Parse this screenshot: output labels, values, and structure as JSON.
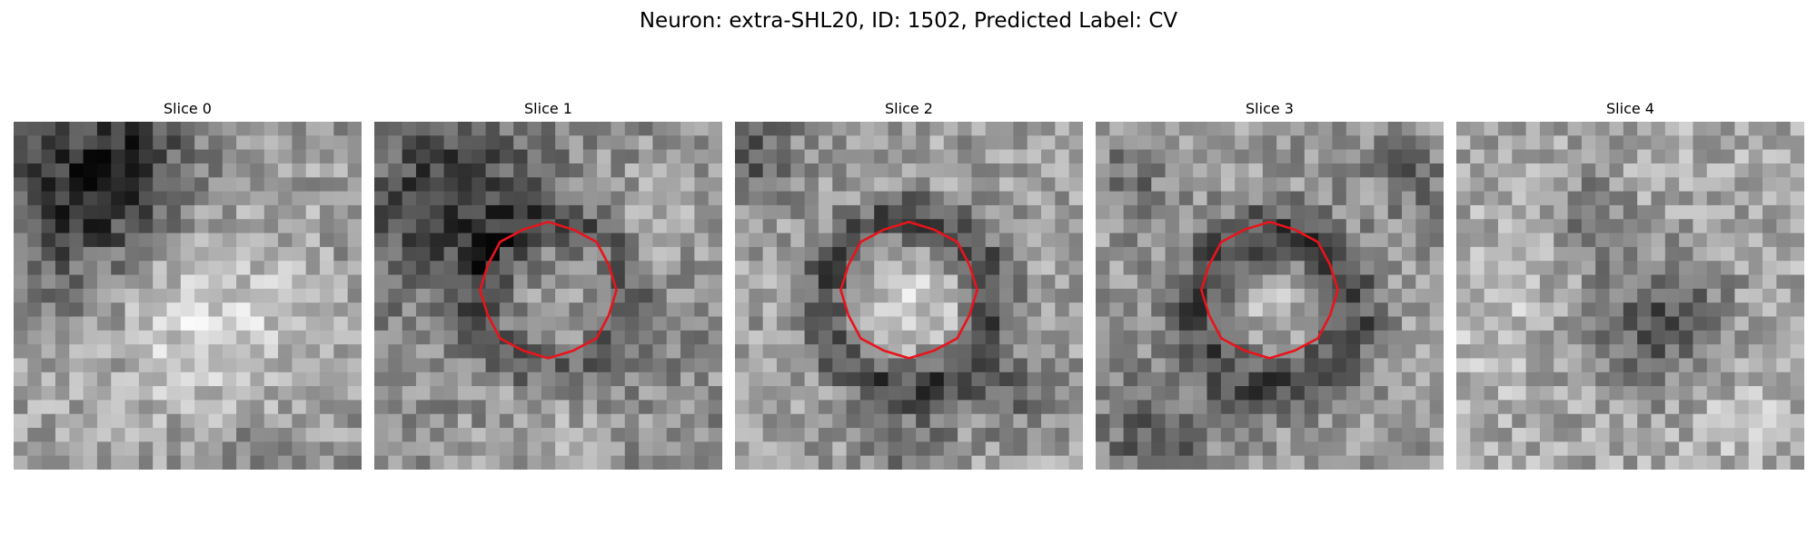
{
  "figure": {
    "title": "Neuron: extra-SHL20, ID: 1502, Predicted Label: CV"
  },
  "panels": [
    {
      "title": "Slice 0",
      "contour": false,
      "seed": 11,
      "pattern": "slice0"
    },
    {
      "title": "Slice 1",
      "contour": true,
      "seed": 23,
      "pattern": "slice1"
    },
    {
      "title": "Slice 2",
      "contour": true,
      "seed": 37,
      "pattern": "slice2"
    },
    {
      "title": "Slice 3",
      "contour": true,
      "seed": 51,
      "pattern": "slice3"
    },
    {
      "title": "Slice 4",
      "contour": false,
      "seed": 67,
      "pattern": "slice4"
    }
  ],
  "colors": {
    "contour": "#e8141c",
    "colormap": "gray"
  }
}
